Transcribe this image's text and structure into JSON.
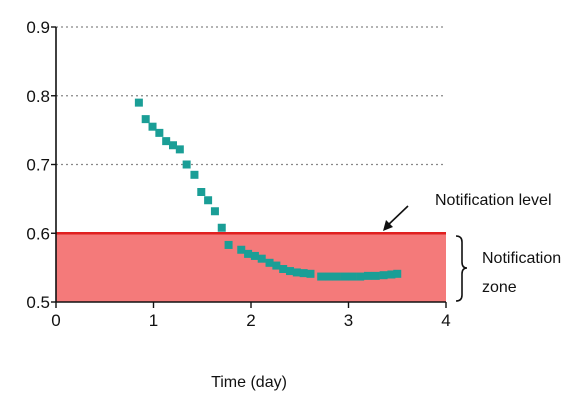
{
  "chart_data": {
    "type": "scatter",
    "title": "",
    "xlabel": "Time (day)",
    "ylabel": "",
    "xlim": [
      0,
      4
    ],
    "ylim": [
      0.5,
      0.9
    ],
    "x_ticks": [
      "0",
      "1",
      "2",
      "3",
      "4"
    ],
    "y_ticks": [
      "0.5",
      "0.6",
      "0.7",
      "0.8",
      "0.9"
    ],
    "grid": "horizontal dotted at 0.7, 0.8, 0.9",
    "series": [
      {
        "color": "#1a9e96",
        "marker": "square",
        "x": [
          0.85,
          0.92,
          0.99,
          1.06,
          1.13,
          1.2,
          1.27,
          1.34,
          1.42,
          1.49,
          1.56,
          1.63,
          1.7,
          1.77,
          1.9,
          1.97,
          2.04,
          2.11,
          2.19,
          2.26,
          2.33,
          2.4,
          2.47,
          2.54,
          2.61,
          2.72,
          2.8,
          2.88,
          2.96,
          3.04,
          3.12,
          3.2,
          3.28,
          3.36,
          3.44,
          3.5
        ],
        "y": [
          0.79,
          0.766,
          0.755,
          0.746,
          0.734,
          0.728,
          0.722,
          0.7,
          0.685,
          0.66,
          0.648,
          0.632,
          0.608,
          0.583,
          0.576,
          0.57,
          0.567,
          0.563,
          0.557,
          0.553,
          0.548,
          0.545,
          0.543,
          0.542,
          0.541,
          0.537,
          0.537,
          0.537,
          0.537,
          0.537,
          0.537,
          0.538,
          0.538,
          0.539,
          0.54,
          0.541
        ]
      }
    ],
    "notification_level": 0.6,
    "notification_level_color": "#e02020",
    "notification_zone_color": "#f47a7a",
    "annotations": {
      "level_label": "Notification level",
      "zone_label_line1": "Notification",
      "zone_label_line2": "zone"
    }
  }
}
